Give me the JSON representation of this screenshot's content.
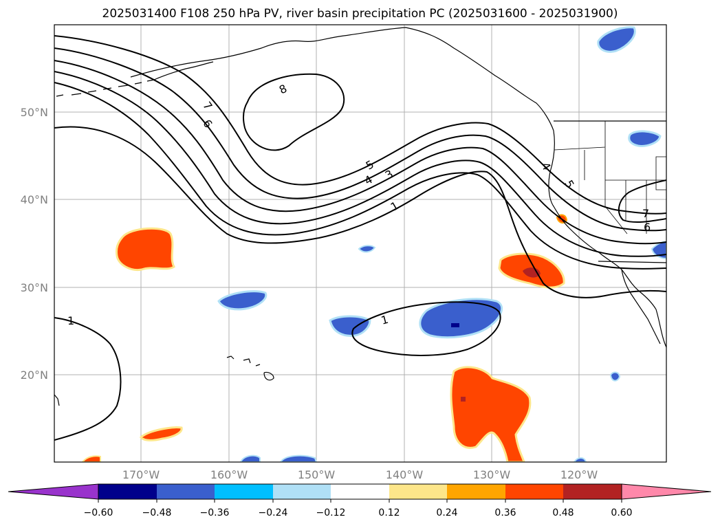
{
  "title": "2025031400 F108 250 hPa PV, river basin precipitation PC (2025031600 - 2025031900)",
  "map": {
    "lat_labels": [
      "50°N",
      "40°N",
      "30°N",
      "20°N"
    ],
    "lon_labels": [
      "170°W",
      "160°W",
      "150°W",
      "140°W",
      "130°W",
      "120°W"
    ],
    "contour_labels": [
      "8",
      "7",
      "6",
      "5",
      "4",
      "3",
      "1",
      "1",
      "1",
      "4",
      "5",
      "7",
      "6"
    ]
  },
  "colorbar": {
    "ticks": [
      "−0.60",
      "−0.48",
      "−0.36",
      "−0.24",
      "−0.12",
      "0.12",
      "0.24",
      "0.36",
      "0.48",
      "0.60"
    ],
    "colors": [
      "#9933cc",
      "#00008b",
      "#3a5fcd",
      "#00bfff",
      "#b0e0f6",
      "#ffffff",
      "#fde68a",
      "#ffa500",
      "#ff4500",
      "#b22222",
      "#ff88aa"
    ]
  }
}
